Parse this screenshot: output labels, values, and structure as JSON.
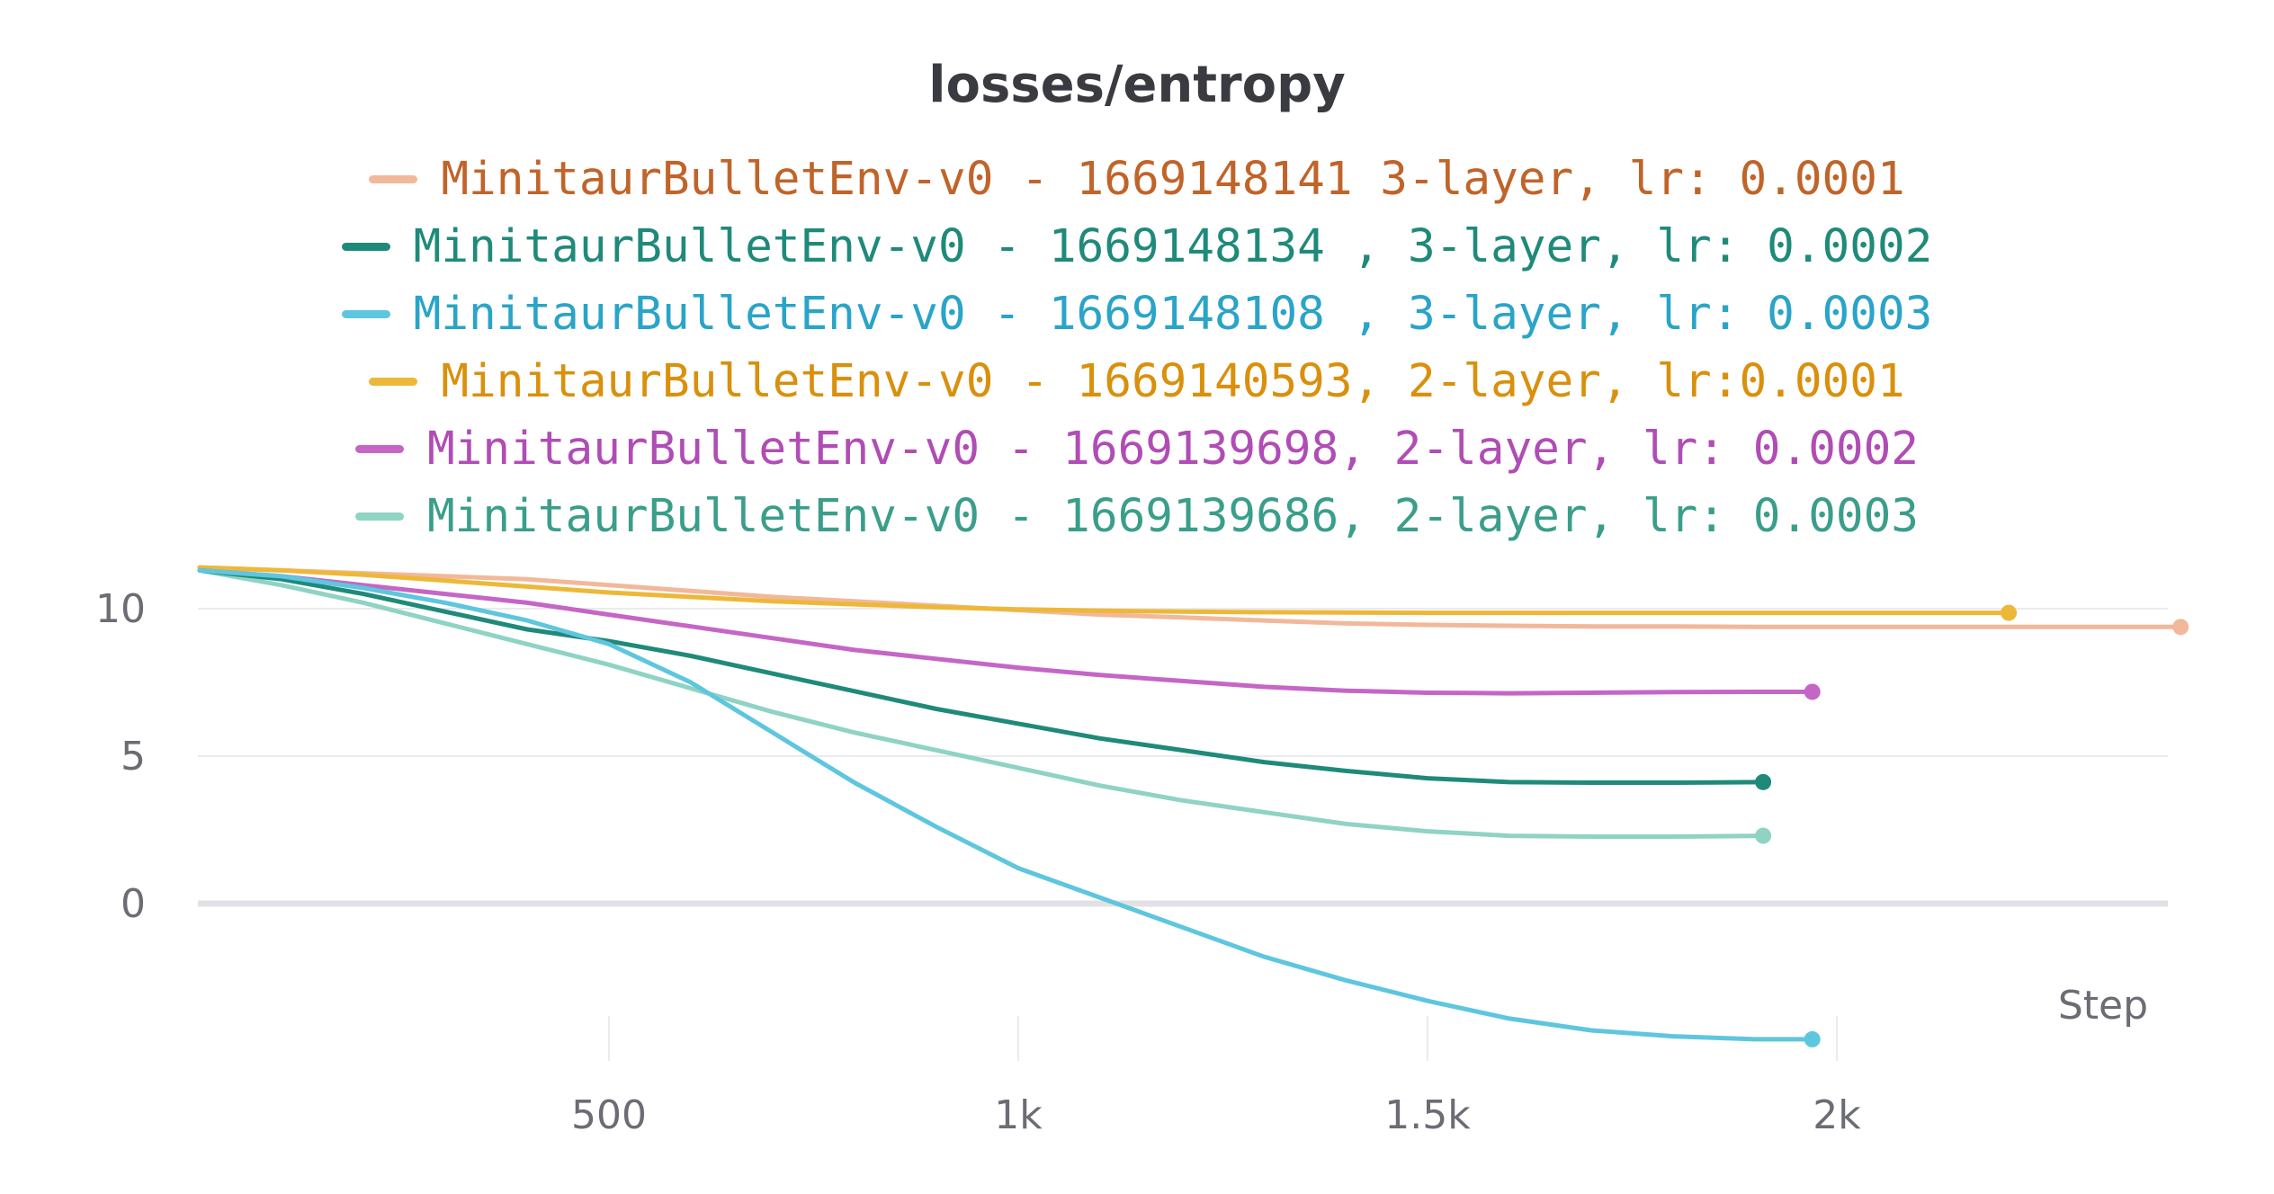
{
  "chart_data": {
    "type": "line",
    "title": "losses/entropy",
    "xlabel": "Step",
    "ylabel": "",
    "xlim": [
      0,
      2420
    ],
    "ylim": [
      -5,
      12
    ],
    "x_ticks": [
      {
        "value": 500,
        "label": "500"
      },
      {
        "value": 1000,
        "label": "1k"
      },
      {
        "value": 1500,
        "label": "1.5k"
      },
      {
        "value": 2000,
        "label": "2k"
      }
    ],
    "y_ticks": [
      {
        "value": 0,
        "label": "0"
      },
      {
        "value": 5,
        "label": "5"
      },
      {
        "value": 10,
        "label": "10"
      }
    ],
    "grid": true,
    "legend_position": "top-center",
    "series": [
      {
        "name": "MinitaurBulletEnv-v0 - 1669148141 3-layer, lr: 0.0001",
        "color": "#f2b89a",
        "text_color": "#c0642a",
        "x": [
          0,
          100,
          200,
          300,
          400,
          500,
          600,
          700,
          800,
          900,
          1000,
          1100,
          1200,
          1300,
          1400,
          1500,
          1600,
          1700,
          1800,
          1900,
          2000,
          2100,
          2200,
          2300,
          2420
        ],
        "y": [
          11.4,
          11.3,
          11.2,
          11.1,
          11.0,
          10.8,
          10.6,
          10.4,
          10.25,
          10.1,
          9.95,
          9.8,
          9.7,
          9.6,
          9.5,
          9.45,
          9.42,
          9.4,
          9.4,
          9.38,
          9.38,
          9.38,
          9.38,
          9.38,
          9.38
        ]
      },
      {
        "name": "MinitaurBulletEnv-v0 - 1669148134 , 3-layer, lr: 0.0002",
        "color": "#1f8a7a",
        "text_color": "#1f8a7a",
        "x": [
          0,
          100,
          200,
          300,
          400,
          500,
          600,
          700,
          800,
          900,
          1000,
          1100,
          1200,
          1300,
          1400,
          1500,
          1600,
          1700,
          1800,
          1910
        ],
        "y": [
          11.3,
          11.0,
          10.5,
          9.9,
          9.3,
          8.9,
          8.4,
          7.8,
          7.2,
          6.6,
          6.1,
          5.6,
          5.2,
          4.8,
          4.5,
          4.25,
          4.12,
          4.1,
          4.1,
          4.12
        ]
      },
      {
        "name": "MinitaurBulletEnv-v0 - 1669148108 , 3-layer, lr: 0.0003",
        "color": "#5ec6de",
        "text_color": "#2aa4c8",
        "x": [
          0,
          100,
          200,
          300,
          400,
          500,
          600,
          700,
          800,
          900,
          1000,
          1100,
          1200,
          1300,
          1400,
          1500,
          1600,
          1700,
          1800,
          1900,
          1970
        ],
        "y": [
          11.3,
          11.1,
          10.7,
          10.2,
          9.6,
          8.8,
          7.5,
          5.8,
          4.1,
          2.6,
          1.2,
          0.2,
          -0.8,
          -1.8,
          -2.6,
          -3.3,
          -3.9,
          -4.3,
          -4.5,
          -4.6,
          -4.6
        ]
      },
      {
        "name": "MinitaurBulletEnv-v0 - 1669140593, 2-layer, lr:0.0001",
        "color": "#edb839",
        "text_color": "#d9900c",
        "x": [
          0,
          100,
          200,
          300,
          400,
          500,
          600,
          700,
          800,
          900,
          1000,
          1100,
          1200,
          1300,
          1400,
          1500,
          1600,
          1700,
          1800,
          1900,
          2000,
          2100,
          2210
        ],
        "y": [
          11.4,
          11.3,
          11.15,
          10.95,
          10.75,
          10.55,
          10.4,
          10.25,
          10.15,
          10.05,
          9.98,
          9.93,
          9.9,
          9.88,
          9.87,
          9.86,
          9.86,
          9.86,
          9.86,
          9.86,
          9.86,
          9.86,
          9.86
        ]
      },
      {
        "name": "MinitaurBulletEnv-v0 - 1669139698, 2-layer, lr: 0.0002",
        "color": "#c566c6",
        "text_color": "#b04db5",
        "x": [
          0,
          100,
          200,
          300,
          400,
          500,
          600,
          700,
          800,
          900,
          1000,
          1100,
          1200,
          1300,
          1400,
          1500,
          1600,
          1700,
          1800,
          1900,
          1970
        ],
        "y": [
          11.3,
          11.1,
          10.8,
          10.5,
          10.2,
          9.8,
          9.4,
          9.0,
          8.6,
          8.3,
          8.0,
          7.75,
          7.55,
          7.35,
          7.22,
          7.15,
          7.13,
          7.15,
          7.17,
          7.18,
          7.18
        ]
      },
      {
        "name": "MinitaurBulletEnv-v0 - 1669139686, 2-layer, lr: 0.0003",
        "color": "#8fd3c4",
        "text_color": "#3a9e8a",
        "x": [
          0,
          100,
          200,
          300,
          400,
          500,
          600,
          700,
          800,
          900,
          1000,
          1100,
          1200,
          1300,
          1400,
          1500,
          1600,
          1700,
          1800,
          1910
        ],
        "y": [
          11.3,
          10.8,
          10.2,
          9.5,
          8.8,
          8.1,
          7.3,
          6.5,
          5.8,
          5.2,
          4.6,
          4.0,
          3.5,
          3.1,
          2.7,
          2.45,
          2.3,
          2.27,
          2.27,
          2.3
        ]
      }
    ]
  }
}
